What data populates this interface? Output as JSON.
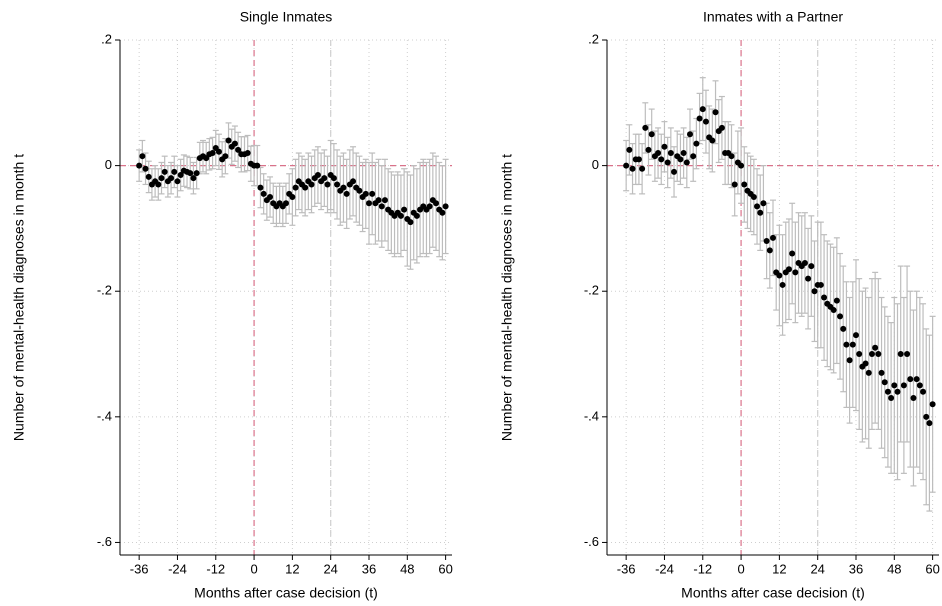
{
  "chart_data": [
    {
      "type": "scatter",
      "title": "Single Inmates",
      "xlabel": "Months after case decision (t)",
      "ylabel": "Number of mental-health diagnoses in month t",
      "x": [
        -36,
        -35,
        -34,
        -33,
        -32,
        -31,
        -30,
        -29,
        -28,
        -27,
        -26,
        -25,
        -24,
        -23,
        -22,
        -21,
        -20,
        -19,
        -18,
        -17,
        -16,
        -15,
        -14,
        -13,
        -12,
        -11,
        -10,
        -9,
        -8,
        -7,
        -6,
        -5,
        -4,
        -3,
        -2,
        -1,
        0,
        1,
        2,
        3,
        4,
        5,
        6,
        7,
        8,
        9,
        10,
        11,
        12,
        13,
        14,
        15,
        16,
        17,
        18,
        19,
        20,
        21,
        22,
        23,
        24,
        25,
        26,
        27,
        28,
        29,
        30,
        31,
        32,
        33,
        34,
        35,
        36,
        37,
        38,
        39,
        40,
        41,
        42,
        43,
        44,
        45,
        46,
        47,
        48,
        49,
        50,
        51,
        52,
        53,
        54,
        55,
        56,
        57,
        58,
        59,
        60
      ],
      "values": [
        0,
        0.015,
        -0.005,
        -0.018,
        -0.03,
        -0.025,
        -0.03,
        -0.02,
        -0.01,
        -0.025,
        -0.02,
        -0.01,
        -0.025,
        -0.015,
        -0.008,
        -0.01,
        -0.012,
        -0.02,
        -0.012,
        0.012,
        0.015,
        0.012,
        0.018,
        0.02,
        0.028,
        0.022,
        0.01,
        0.015,
        0.04,
        0.03,
        0.035,
        0.025,
        0.018,
        0.018,
        0.02,
        0.003,
        0,
        0,
        -0.035,
        -0.045,
        -0.055,
        -0.05,
        -0.06,
        -0.065,
        -0.06,
        -0.065,
        -0.06,
        -0.045,
        -0.05,
        -0.035,
        -0.025,
        -0.03,
        -0.035,
        -0.025,
        -0.03,
        -0.02,
        -0.015,
        -0.025,
        -0.02,
        -0.03,
        -0.015,
        -0.02,
        -0.03,
        -0.04,
        -0.035,
        -0.045,
        -0.03,
        -0.025,
        -0.035,
        -0.04,
        -0.05,
        -0.045,
        -0.06,
        -0.045,
        -0.06,
        -0.055,
        -0.065,
        -0.055,
        -0.07,
        -0.075,
        -0.08,
        -0.075,
        -0.08,
        -0.07,
        -0.085,
        -0.09,
        -0.075,
        -0.08,
        -0.07,
        -0.065,
        -0.07,
        -0.065,
        -0.055,
        -0.06,
        -0.07,
        -0.075,
        -0.065
      ],
      "errors": [
        0.025,
        0.025,
        0.025,
        0.025,
        0.025,
        0.025,
        0.025,
        0.025,
        0.025,
        0.025,
        0.025,
        0.025,
        0.025,
        0.025,
        0.025,
        0.025,
        0.025,
        0.025,
        0.025,
        0.025,
        0.025,
        0.025,
        0.025,
        0.025,
        0.028,
        0.028,
        0.028,
        0.028,
        0.028,
        0.028,
        0.028,
        0.028,
        0.028,
        0.028,
        0.028,
        0.028,
        0.032,
        0.032,
        0.032,
        0.032,
        0.032,
        0.032,
        0.032,
        0.032,
        0.032,
        0.032,
        0.032,
        0.032,
        0.045,
        0.045,
        0.045,
        0.045,
        0.045,
        0.045,
        0.045,
        0.045,
        0.045,
        0.045,
        0.045,
        0.045,
        0.055,
        0.055,
        0.055,
        0.055,
        0.055,
        0.055,
        0.055,
        0.055,
        0.055,
        0.055,
        0.055,
        0.055,
        0.065,
        0.065,
        0.065,
        0.065,
        0.065,
        0.065,
        0.065,
        0.065,
        0.065,
        0.065,
        0.065,
        0.065,
        0.075,
        0.075,
        0.075,
        0.075,
        0.075,
        0.075,
        0.075,
        0.075,
        0.075,
        0.075,
        0.075,
        0.075,
        0.075
      ],
      "color": "#000000",
      "error_color": "#bdbdbd",
      "xlim": [
        -42,
        62
      ],
      "xticks": [
        -36,
        -24,
        -12,
        0,
        12,
        24,
        36,
        48,
        60
      ],
      "ylim": [
        -0.62,
        0.2
      ],
      "yticks": [
        {
          "value": 0.2,
          "label": ".2"
        },
        0,
        {
          "value": -0.2,
          "label": "-.2"
        },
        {
          "value": -0.4,
          "label": "-.4"
        },
        {
          "value": -0.6,
          "label": "-.6"
        }
      ],
      "grid": true,
      "reference_lines": [
        {
          "axis": "x",
          "value": 0,
          "color": "#d9728a"
        },
        {
          "axis": "y",
          "value": 0,
          "color": "#d9728a"
        },
        {
          "axis": "x",
          "value": 24,
          "color": "#d0d0d0"
        }
      ]
    },
    {
      "type": "scatter",
      "title": "Inmates with a Partner",
      "xlabel": "Months after case decision (t)",
      "ylabel": "Number of mental-health diagnoses in month t",
      "x": [
        -36,
        -35,
        -34,
        -33,
        -32,
        -31,
        -30,
        -29,
        -28,
        -27,
        -26,
        -25,
        -24,
        -23,
        -22,
        -21,
        -20,
        -19,
        -18,
        -17,
        -16,
        -15,
        -14,
        -13,
        -12,
        -11,
        -10,
        -9,
        -8,
        -7,
        -6,
        -5,
        -4,
        -3,
        -2,
        -1,
        0,
        1,
        2,
        3,
        4,
        5,
        6,
        7,
        8,
        9,
        10,
        11,
        12,
        13,
        14,
        15,
        16,
        17,
        18,
        19,
        20,
        21,
        22,
        23,
        24,
        25,
        26,
        27,
        28,
        29,
        30,
        31,
        32,
        33,
        34,
        35,
        36,
        37,
        38,
        39,
        40,
        41,
        42,
        43,
        44,
        45,
        46,
        47,
        48,
        49,
        50,
        51,
        52,
        53,
        54,
        55,
        56,
        57,
        58,
        59,
        60
      ],
      "values": [
        0,
        0.025,
        -0.005,
        0.01,
        0.01,
        -0.005,
        0.06,
        0.025,
        0.05,
        0.015,
        0.02,
        0.01,
        0.03,
        0.005,
        0.02,
        -0.01,
        0.015,
        0.01,
        0.02,
        0.005,
        0.05,
        0.015,
        0.035,
        0.075,
        0.09,
        0.07,
        0.045,
        0.04,
        0.085,
        0.055,
        0.06,
        0.02,
        0.02,
        0.015,
        -0.03,
        0.005,
        0,
        -0.03,
        -0.04,
        -0.045,
        -0.05,
        -0.065,
        -0.075,
        -0.06,
        -0.12,
        -0.135,
        -0.115,
        -0.17,
        -0.175,
        -0.19,
        -0.17,
        -0.165,
        -0.14,
        -0.17,
        -0.155,
        -0.16,
        -0.155,
        -0.18,
        -0.16,
        -0.2,
        -0.19,
        -0.19,
        -0.21,
        -0.22,
        -0.225,
        -0.23,
        -0.215,
        -0.24,
        -0.26,
        -0.285,
        -0.31,
        -0.285,
        -0.27,
        -0.3,
        -0.32,
        -0.315,
        -0.33,
        -0.3,
        -0.29,
        -0.3,
        -0.33,
        -0.345,
        -0.36,
        -0.37,
        -0.35,
        -0.36,
        -0.3,
        -0.35,
        -0.3,
        -0.34,
        -0.37,
        -0.34,
        -0.35,
        -0.36,
        -0.4,
        -0.41,
        -0.38
      ],
      "errors": [
        0.04,
        0.04,
        0.04,
        0.04,
        0.04,
        0.04,
        0.04,
        0.04,
        0.04,
        0.04,
        0.04,
        0.04,
        0.04,
        0.04,
        0.04,
        0.04,
        0.04,
        0.04,
        0.04,
        0.04,
        0.04,
        0.04,
        0.04,
        0.04,
        0.05,
        0.05,
        0.05,
        0.05,
        0.05,
        0.05,
        0.05,
        0.05,
        0.05,
        0.05,
        0.05,
        0.05,
        0.06,
        0.06,
        0.06,
        0.06,
        0.06,
        0.06,
        0.06,
        0.06,
        0.06,
        0.06,
        0.06,
        0.06,
        0.08,
        0.08,
        0.08,
        0.08,
        0.08,
        0.08,
        0.08,
        0.08,
        0.08,
        0.08,
        0.08,
        0.08,
        0.1,
        0.1,
        0.1,
        0.1,
        0.1,
        0.1,
        0.1,
        0.1,
        0.1,
        0.1,
        0.1,
        0.1,
        0.12,
        0.12,
        0.12,
        0.12,
        0.12,
        0.12,
        0.12,
        0.12,
        0.12,
        0.12,
        0.12,
        0.12,
        0.14,
        0.14,
        0.14,
        0.14,
        0.14,
        0.14,
        0.14,
        0.14,
        0.14,
        0.14,
        0.14,
        0.14,
        0.14
      ],
      "color": "#000000",
      "error_color": "#bdbdbd",
      "xlim": [
        -42,
        62
      ],
      "xticks": [
        -36,
        -24,
        -12,
        0,
        12,
        24,
        36,
        48,
        60
      ],
      "ylim": [
        -0.62,
        0.2
      ],
      "yticks": [
        {
          "value": 0.2,
          "label": ".2"
        },
        0,
        {
          "value": -0.2,
          "label": "-.2"
        },
        {
          "value": -0.4,
          "label": "-.4"
        },
        {
          "value": -0.6,
          "label": "-.6"
        }
      ],
      "grid": true,
      "reference_lines": [
        {
          "axis": "x",
          "value": 0,
          "color": "#d9728a"
        },
        {
          "axis": "y",
          "value": 0,
          "color": "#d9728a"
        },
        {
          "axis": "x",
          "value": 24,
          "color": "#d0d0d0"
        }
      ]
    }
  ]
}
